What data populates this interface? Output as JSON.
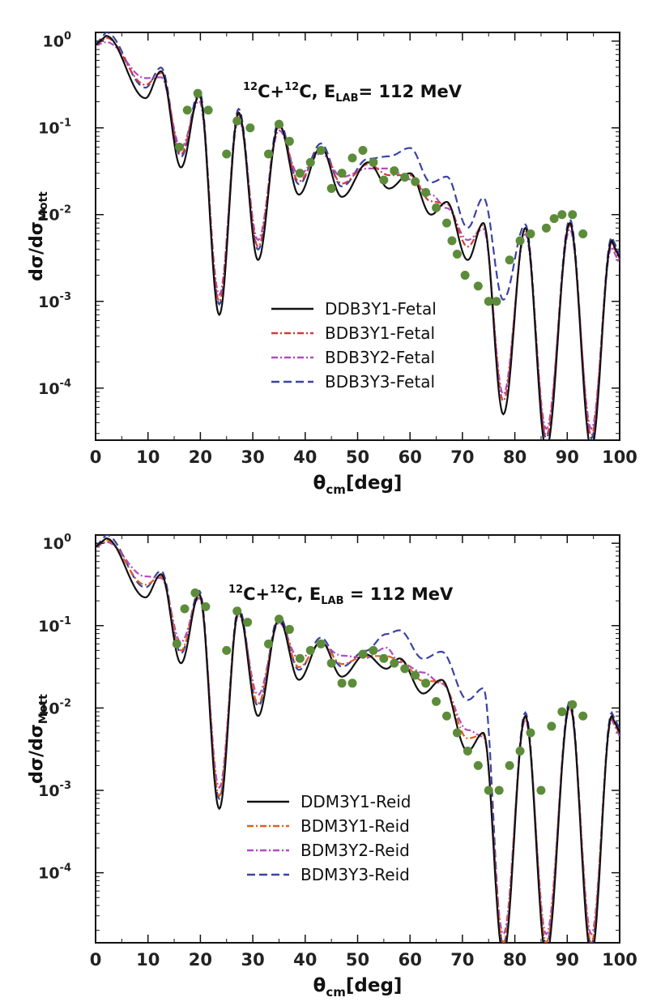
{
  "chart_data": [
    {
      "type": "line",
      "annotation": "¹²C+¹²C, E_LAB= 112 MeV",
      "annotation_parts": [
        "12",
        "C+",
        "12",
        "C, E",
        "LAB",
        "= 112 MeV"
      ],
      "xlabel_main": "θ",
      "xlabel_sub": "cm",
      "xlabel_tail": "[deg]",
      "ylabel_main": "dσ/dσ",
      "ylabel_sub": "Mott",
      "xlim": [
        0,
        100
      ],
      "ylim_log10": [
        -4.6,
        0.1
      ],
      "x_ticks": [
        "0",
        "10",
        "20",
        "30",
        "40",
        "50",
        "60",
        "70",
        "80",
        "90",
        "100"
      ],
      "y_ticks": [
        {
          "exp": "0",
          "val": 0
        },
        {
          "exp": "-1",
          "val": -1
        },
        {
          "exp": "-2",
          "val": -2
        },
        {
          "exp": "-3",
          "val": -3
        },
        {
          "exp": "-4",
          "val": -4
        }
      ],
      "y_tick_base": "10",
      "legend_position": "center-right",
      "series": [
        {
          "name": "DDB3Y1-Fetal",
          "color": "#111111",
          "dash": "",
          "yfactor": 1.0,
          "dipfactor": 1.0,
          "largemod": 0
        },
        {
          "name": "BDB3Y1-Fetal",
          "color": "#d23c3c",
          "dash": "8,3,2,3",
          "yfactor": 0.95,
          "dipfactor": 1.5,
          "largemod": 0
        },
        {
          "name": "BDB3Y2-Fetal",
          "color": "#b04cc0",
          "dash": "8,3,2,3",
          "yfactor": 0.85,
          "dipfactor": 2.0,
          "largemod": 0
        },
        {
          "name": "BDB3Y3-Fetal",
          "color": "#3b44a0",
          "dash": "10,5",
          "yfactor": 1.1,
          "dipfactor": 1.2,
          "largemod": 1
        }
      ],
      "experimental": {
        "color": "#5c8c3a",
        "x": [
          16,
          17.5,
          19.5,
          21.5,
          25,
          27,
          29.5,
          33,
          35,
          37,
          39,
          41,
          43,
          45,
          47,
          49,
          51,
          53,
          55,
          57,
          59,
          61,
          63,
          65,
          67,
          68,
          69,
          70.5,
          73,
          75,
          76.5,
          79,
          81,
          83,
          86,
          87.5,
          89,
          91,
          93
        ],
        "y": [
          0.06,
          0.16,
          0.25,
          0.16,
          0.05,
          0.12,
          0.1,
          0.05,
          0.11,
          0.07,
          0.03,
          0.04,
          0.055,
          0.02,
          0.03,
          0.045,
          0.055,
          0.04,
          0.025,
          0.032,
          0.027,
          0.024,
          0.018,
          0.012,
          0.008,
          0.005,
          0.0035,
          0.002,
          0.0015,
          0.001,
          0.001,
          0.003,
          0.005,
          0.006,
          0.007,
          0.009,
          0.01,
          0.01,
          0.006
        ]
      },
      "base_peaks": [
        [
          2,
          1.15
        ],
        [
          12.5,
          0.45
        ],
        [
          19.8,
          0.24
        ],
        [
          27.3,
          0.15
        ],
        [
          35,
          0.11
        ],
        [
          43,
          0.06
        ],
        [
          52,
          0.04
        ],
        [
          60,
          0.03
        ],
        [
          67,
          0.014
        ],
        [
          74,
          0.008
        ],
        [
          82,
          0.007
        ],
        [
          90.5,
          0.008
        ],
        [
          98.5,
          0.005
        ]
      ],
      "base_dips": [
        [
          9.5,
          0.22
        ],
        [
          16.3,
          0.035
        ],
        [
          23.6,
          0.0007
        ],
        [
          31,
          0.003
        ],
        [
          38.8,
          0.017
        ],
        [
          47,
          0.016
        ],
        [
          56,
          0.02
        ],
        [
          64,
          0.01
        ],
        [
          71,
          0.003
        ],
        [
          77.8,
          5e-05
        ],
        [
          86,
          2e-05
        ],
        [
          94.6,
          2e-05
        ]
      ]
    },
    {
      "type": "line",
      "annotation": "¹²C+¹²C, E_LAB = 112 MeV",
      "annotation_parts": [
        "12",
        "C+",
        "12",
        "C, E",
        "LAB",
        " = 112 MeV"
      ],
      "xlabel_main": "θ",
      "xlabel_sub": "cm",
      "xlabel_tail": "[deg]",
      "ylabel_main": "dσ/dσ",
      "ylabel_sub": "Mott",
      "xlim": [
        0,
        100
      ],
      "ylim_log10": [
        -4.85,
        0.1
      ],
      "x_ticks": [
        "0",
        "10",
        "20",
        "30",
        "40",
        "50",
        "60",
        "70",
        "80",
        "90",
        "100"
      ],
      "y_ticks": [
        {
          "exp": "0",
          "val": 0
        },
        {
          "exp": "-1",
          "val": -1
        },
        {
          "exp": "-2",
          "val": -2
        },
        {
          "exp": "-3",
          "val": -3
        },
        {
          "exp": "-4",
          "val": -4
        }
      ],
      "y_tick_base": "10",
      "legend_position": "lower-center",
      "series": [
        {
          "name": "DDM3Y1-Reid",
          "color": "#111111",
          "dash": "",
          "yfactor": 1.0,
          "dipfactor": 1.0,
          "largemod": 0
        },
        {
          "name": "BDM3Y1-Reid",
          "color": "#e0601e",
          "dash": "8,3,2,3",
          "yfactor": 0.95,
          "dipfactor": 1.5,
          "largemod": 0
        },
        {
          "name": "BDM3Y2-Reid",
          "color": "#b04cc0",
          "dash": "8,3,2,3",
          "yfactor": 0.9,
          "dipfactor": 2.0,
          "largemod": 0
        },
        {
          "name": "BDM3Y3-Reid",
          "color": "#3b44a0",
          "dash": "10,5",
          "yfactor": 1.1,
          "dipfactor": 1.2,
          "largemod": 2
        }
      ],
      "experimental": {
        "color": "#5c8c3a",
        "x": [
          15.5,
          17,
          19,
          21,
          25,
          27,
          29,
          33,
          35,
          37,
          39,
          41,
          43,
          45,
          47,
          49,
          51,
          53,
          55,
          57,
          59,
          61,
          63,
          65,
          67,
          69,
          71,
          73,
          75,
          77,
          79,
          81,
          83,
          85,
          87,
          89,
          91,
          93
        ],
        "y": [
          0.06,
          0.16,
          0.25,
          0.17,
          0.05,
          0.15,
          0.11,
          0.06,
          0.12,
          0.09,
          0.04,
          0.05,
          0.06,
          0.035,
          0.02,
          0.02,
          0.045,
          0.05,
          0.04,
          0.035,
          0.03,
          0.025,
          0.02,
          0.012,
          0.008,
          0.005,
          0.003,
          0.002,
          0.001,
          0.001,
          0.002,
          0.003,
          0.005,
          0.001,
          0.006,
          0.009,
          0.011,
          0.008
        ]
      },
      "base_peaks": [
        [
          2,
          1.15
        ],
        [
          12.5,
          0.42
        ],
        [
          19.8,
          0.24
        ],
        [
          27.3,
          0.15
        ],
        [
          35,
          0.12
        ],
        [
          43,
          0.065
        ],
        [
          51.5,
          0.045
        ],
        [
          58,
          0.04
        ],
        [
          66,
          0.022
        ],
        [
          74,
          0.005
        ],
        [
          82,
          0.008
        ],
        [
          90.5,
          0.011
        ],
        [
          98.5,
          0.008
        ]
      ],
      "base_dips": [
        [
          9.5,
          0.22
        ],
        [
          16.3,
          0.035
        ],
        [
          23.6,
          0.0006
        ],
        [
          31,
          0.008
        ],
        [
          38.8,
          0.022
        ],
        [
          47,
          0.024
        ],
        [
          55.5,
          0.03
        ],
        [
          62.5,
          0.015
        ],
        [
          71,
          0.003
        ],
        [
          77.8,
          1e-05
        ],
        [
          86,
          1e-05
        ],
        [
          94.6,
          1e-05
        ]
      ]
    }
  ]
}
